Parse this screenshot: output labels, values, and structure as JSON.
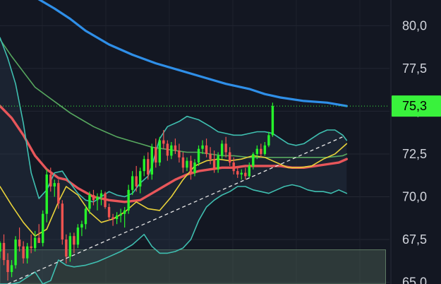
{
  "chart_data": {
    "type": "candlestick",
    "y_axis": {
      "ticks": [
        "65,0",
        "67,5",
        "70,0",
        "72,5",
        "75,0",
        "77,5",
        "80,0"
      ],
      "tick_values": [
        65.0,
        67.5,
        70.0,
        72.5,
        75.0,
        77.5,
        80.0
      ],
      "range": [
        64.9,
        81.5
      ],
      "position": "right"
    },
    "x_range": [
      0,
      100
    ],
    "last_price": {
      "label": "75,3",
      "value": 75.3
    },
    "support_zone": {
      "y_top": 66.9,
      "y_bottom": 64.9
    },
    "trendline": [
      [
        2,
        64.9
      ],
      [
        88,
        73.5
      ]
    ],
    "colors": {
      "background": "#131722",
      "up": "#26f52a",
      "down": "#f05350",
      "ma_long": "#2f8fe8",
      "ma_mid": "#57a85f",
      "ma_fast": "#e8565a",
      "ma_short": "#e8d23a",
      "band": "#3fbfb0",
      "price_badge": "#39f23c",
      "zone": "#4d6356"
    },
    "candles": [
      [
        0,
        66.8,
        67.4,
        66.4,
        67.3
      ],
      [
        1,
        67.3,
        67.8,
        66.0,
        66.3
      ],
      [
        2,
        66.3,
        66.7,
        65.1,
        65.6
      ],
      [
        3,
        65.6,
        66.3,
        65.3,
        66.0
      ],
      [
        4,
        66.0,
        67.7,
        65.8,
        67.5
      ],
      [
        5,
        67.5,
        68.2,
        66.8,
        67.1
      ],
      [
        6,
        67.1,
        67.4,
        66.1,
        66.4
      ],
      [
        7,
        66.4,
        67.3,
        66.1,
        67.1
      ],
      [
        8,
        67.1,
        67.8,
        66.7,
        67.0
      ],
      [
        9,
        67.0,
        68.0,
        66.8,
        67.6
      ],
      [
        10,
        67.6,
        68.4,
        67.3,
        67.3
      ],
      [
        11,
        67.3,
        69.2,
        67.1,
        69.0
      ],
      [
        12,
        69.0,
        71.6,
        68.5,
        71.3
      ],
      [
        13,
        71.3,
        71.7,
        70.3,
        70.6
      ],
      [
        14,
        70.6,
        71.0,
        70.0,
        70.8
      ],
      [
        15,
        70.8,
        71.0,
        69.3,
        69.6
      ],
      [
        16,
        69.6,
        69.8,
        67.2,
        67.5
      ],
      [
        17,
        67.5,
        67.8,
        66.1,
        66.5
      ],
      [
        18,
        66.5,
        67.9,
        66.2,
        67.7
      ],
      [
        19,
        67.7,
        67.9,
        66.7,
        67.2
      ],
      [
        20,
        67.2,
        68.4,
        67.0,
        68.2
      ],
      [
        21,
        68.2,
        68.6,
        67.7,
        68.4
      ],
      [
        22,
        68.4,
        69.5,
        68.1,
        69.3
      ],
      [
        23,
        69.3,
        70.3,
        69.0,
        70.1
      ],
      [
        24,
        70.1,
        70.4,
        69.5,
        69.8
      ],
      [
        25,
        69.8,
        70.2,
        69.2,
        70.0
      ],
      [
        26,
        70.0,
        70.4,
        69.5,
        70.2
      ],
      [
        27,
        70.2,
        70.3,
        69.3,
        69.4
      ],
      [
        28,
        69.4,
        69.6,
        68.6,
        68.8
      ],
      [
        29,
        68.8,
        69.0,
        68.3,
        68.7
      ],
      [
        30,
        68.7,
        69.1,
        68.4,
        68.9
      ],
      [
        31,
        68.9,
        69.3,
        68.5,
        69.0
      ],
      [
        32,
        69.0,
        69.4,
        68.2,
        69.2
      ],
      [
        33,
        69.2,
        70.7,
        69.0,
        70.4
      ],
      [
        34,
        70.4,
        71.5,
        70.1,
        71.2
      ],
      [
        35,
        71.2,
        71.8,
        70.3,
        70.6
      ],
      [
        36,
        70.6,
        71.7,
        70.2,
        71.5
      ],
      [
        37,
        71.5,
        72.4,
        71.2,
        72.2
      ],
      [
        38,
        72.2,
        72.6,
        71.0,
        71.3
      ],
      [
        39,
        71.3,
        73.1,
        71.0,
        72.9
      ],
      [
        40,
        72.9,
        73.4,
        71.7,
        72.0
      ],
      [
        41,
        72.0,
        73.5,
        71.8,
        73.3
      ],
      [
        42,
        73.3,
        73.9,
        72.8,
        73.1
      ],
      [
        43,
        73.1,
        73.3,
        72.1,
        72.4
      ],
      [
        44,
        72.4,
        73.2,
        72.2,
        73.0
      ],
      [
        45,
        73.0,
        73.4,
        72.5,
        72.7
      ],
      [
        46,
        72.7,
        73.1,
        72.0,
        72.3
      ],
      [
        47,
        72.3,
        72.6,
        71.4,
        71.7
      ],
      [
        48,
        71.7,
        72.3,
        71.5,
        72.1
      ],
      [
        49,
        72.1,
        72.4,
        71.0,
        71.4
      ],
      [
        50,
        71.4,
        72.2,
        71.2,
        72.0
      ],
      [
        51,
        72.0,
        73.0,
        71.8,
        72.8
      ],
      [
        52,
        72.8,
        73.3,
        72.5,
        73.0
      ],
      [
        53,
        73.0,
        73.4,
        72.3,
        72.5
      ],
      [
        54,
        72.5,
        72.9,
        71.9,
        72.2
      ],
      [
        55,
        72.2,
        72.7,
        71.4,
        71.6
      ],
      [
        56,
        71.6,
        72.6,
        71.4,
        72.4
      ],
      [
        57,
        72.4,
        73.3,
        72.2,
        73.1
      ],
      [
        58,
        73.1,
        73.5,
        72.3,
        72.6
      ],
      [
        59,
        72.6,
        72.9,
        71.8,
        72.0
      ],
      [
        60,
        72.0,
        72.3,
        71.3,
        71.5
      ],
      [
        61,
        71.5,
        71.8,
        71.1,
        71.3
      ],
      [
        62,
        71.3,
        71.6,
        71.0,
        71.4
      ],
      [
        63,
        71.4,
        71.7,
        71.0,
        71.2
      ],
      [
        64,
        71.2,
        72.0,
        71.1,
        71.8
      ],
      [
        65,
        71.8,
        72.6,
        71.6,
        72.5
      ],
      [
        66,
        72.5,
        73.0,
        72.2,
        72.8
      ],
      [
        67,
        72.8,
        73.1,
        72.3,
        72.5
      ],
      [
        68,
        72.5,
        73.2,
        72.4,
        73.0
      ],
      [
        69,
        73.0,
        73.8,
        72.9,
        73.6
      ],
      [
        70,
        73.6,
        75.5,
        73.5,
        75.3
      ]
    ],
    "series": [
      {
        "key": "ma_long",
        "points": [
          [
            8,
            81.8
          ],
          [
            14,
            81.0
          ],
          [
            18,
            80.4
          ],
          [
            22,
            79.7
          ],
          [
            28,
            78.9
          ],
          [
            34,
            78.3
          ],
          [
            40,
            77.8
          ],
          [
            46,
            77.4
          ],
          [
            52,
            77.0
          ],
          [
            58,
            76.6
          ],
          [
            64,
            76.3
          ],
          [
            68,
            76.0
          ],
          [
            72,
            75.8
          ],
          [
            78,
            75.6
          ],
          [
            84,
            75.5
          ],
          [
            89,
            75.3
          ]
        ]
      },
      {
        "key": "ma_mid",
        "points": [
          [
            0,
            79.2
          ],
          [
            3,
            78.2
          ],
          [
            6,
            77.3
          ],
          [
            9,
            76.4
          ],
          [
            12,
            75.9
          ],
          [
            15,
            75.4
          ],
          [
            18,
            74.9
          ],
          [
            21,
            74.5
          ],
          [
            24,
            74.1
          ],
          [
            27,
            73.8
          ],
          [
            30,
            73.5
          ],
          [
            33,
            73.3
          ],
          [
            36,
            73.1
          ],
          [
            39,
            72.9
          ],
          [
            42,
            72.8
          ],
          [
            45,
            72.7
          ],
          [
            48,
            72.6
          ],
          [
            51,
            72.6
          ],
          [
            54,
            72.5
          ],
          [
            57,
            72.4
          ],
          [
            60,
            72.4
          ],
          [
            64,
            72.3
          ],
          [
            68,
            72.3
          ],
          [
            72,
            72.3
          ],
          [
            76,
            72.3
          ],
          [
            80,
            72.3
          ],
          [
            84,
            72.3
          ],
          [
            88,
            72.4
          ],
          [
            89,
            72.5
          ]
        ]
      },
      {
        "key": "ma_fast",
        "points": [
          [
            0,
            75.3
          ],
          [
            3,
            74.6
          ],
          [
            6,
            73.6
          ],
          [
            9,
            72.4
          ],
          [
            12,
            71.6
          ],
          [
            15,
            71.1
          ],
          [
            17,
            71.0
          ],
          [
            20,
            70.5
          ],
          [
            24,
            70.0
          ],
          [
            28,
            69.8
          ],
          [
            32,
            69.7
          ],
          [
            36,
            69.8
          ],
          [
            39,
            70.2
          ],
          [
            42,
            70.6
          ],
          [
            45,
            71.0
          ],
          [
            48,
            71.3
          ],
          [
            51,
            71.5
          ],
          [
            54,
            71.6
          ],
          [
            57,
            71.7
          ],
          [
            60,
            71.7
          ],
          [
            63,
            71.8
          ],
          [
            66,
            71.8
          ],
          [
            69,
            71.8
          ],
          [
            72,
            71.8
          ],
          [
            75,
            71.7
          ],
          [
            78,
            71.7
          ],
          [
            81,
            71.8
          ],
          [
            84,
            71.9
          ],
          [
            87,
            72.0
          ],
          [
            89,
            72.2
          ]
        ]
      },
      {
        "key": "ma_short",
        "points": [
          [
            0,
            70.6
          ],
          [
            3,
            69.5
          ],
          [
            6,
            68.5
          ],
          [
            9,
            67.7
          ],
          [
            12,
            68.1
          ],
          [
            15,
            69.7
          ],
          [
            17,
            70.6
          ],
          [
            20,
            70.1
          ],
          [
            23,
            69.1
          ],
          [
            26,
            68.5
          ],
          [
            29,
            68.7
          ],
          [
            32,
            69.1
          ],
          [
            35,
            69.7
          ],
          [
            38,
            69.3
          ],
          [
            41,
            69.2
          ],
          [
            44,
            70.0
          ],
          [
            47,
            71.0
          ],
          [
            50,
            71.8
          ],
          [
            53,
            72.1
          ],
          [
            56,
            72.2
          ],
          [
            59,
            72.1
          ],
          [
            62,
            72.2
          ],
          [
            65,
            72.4
          ],
          [
            68,
            72.3
          ],
          [
            71,
            72.0
          ],
          [
            74,
            71.7
          ],
          [
            77,
            71.7
          ],
          [
            80,
            71.8
          ],
          [
            83,
            72.2
          ],
          [
            86,
            72.5
          ],
          [
            89,
            73.1
          ]
        ]
      },
      {
        "key": "band",
        "points": [
          [
            0,
            79.3
          ],
          [
            2,
            78.1
          ],
          [
            4,
            76.6
          ],
          [
            6,
            74.3
          ],
          [
            8,
            71.4
          ],
          [
            10,
            69.9
          ],
          [
            12,
            70.4
          ],
          [
            14,
            71.4
          ],
          [
            16,
            71.5
          ],
          [
            18,
            70.8
          ],
          [
            20,
            70.2
          ],
          [
            22,
            69.8
          ],
          [
            24,
            69.7
          ],
          [
            26,
            70.0
          ],
          [
            28,
            70.3
          ],
          [
            30,
            70.1
          ],
          [
            32,
            70.0
          ],
          [
            34,
            70.2
          ],
          [
            36,
            70.8
          ],
          [
            38,
            71.2
          ],
          [
            39,
            71.8
          ],
          [
            41,
            73.4
          ],
          [
            43,
            74.1
          ],
          [
            46,
            74.4
          ],
          [
            48,
            74.7
          ],
          [
            51,
            74.5
          ],
          [
            54,
            74.1
          ],
          [
            56,
            73.8
          ],
          [
            58,
            73.7
          ],
          [
            60,
            73.6
          ],
          [
            62,
            73.6
          ],
          [
            64,
            73.7
          ],
          [
            66,
            73.8
          ],
          [
            68,
            73.8
          ],
          [
            70,
            73.7
          ],
          [
            72,
            73.4
          ],
          [
            74,
            73.1
          ],
          [
            76,
            73.0
          ],
          [
            78,
            73.1
          ],
          [
            80,
            73.4
          ],
          [
            82,
            73.7
          ],
          [
            84,
            73.9
          ],
          [
            86,
            73.9
          ],
          [
            88,
            73.6
          ],
          [
            89,
            73.3
          ]
        ]
      },
      {
        "key": "band",
        "points": [
          [
            0,
            64.9
          ],
          [
            3,
            64.9
          ],
          [
            5,
            65.0
          ],
          [
            7,
            65.3
          ],
          [
            9,
            65.6
          ],
          [
            11,
            64.9
          ],
          [
            13,
            65.1
          ],
          [
            15,
            66.3
          ],
          [
            17,
            66.0
          ],
          [
            19,
            65.9
          ],
          [
            22,
            66.0
          ],
          [
            25,
            66.2
          ],
          [
            28,
            66.5
          ],
          [
            31,
            66.8
          ],
          [
            34,
            67.2
          ],
          [
            37,
            67.8
          ],
          [
            39,
            67.1
          ],
          [
            41,
            66.7
          ],
          [
            43,
            66.7
          ],
          [
            45,
            66.8
          ],
          [
            47,
            67.0
          ],
          [
            49,
            67.5
          ],
          [
            51,
            68.6
          ],
          [
            53,
            69.4
          ],
          [
            55,
            69.8
          ],
          [
            57,
            70.1
          ],
          [
            59,
            70.3
          ],
          [
            61,
            70.6
          ],
          [
            63,
            70.6
          ],
          [
            65,
            70.4
          ],
          [
            67,
            70.3
          ],
          [
            69,
            70.2
          ],
          [
            71,
            70.4
          ],
          [
            73,
            70.6
          ],
          [
            75,
            70.7
          ],
          [
            77,
            70.6
          ],
          [
            79,
            70.4
          ],
          [
            81,
            70.3
          ],
          [
            83,
            70.3
          ],
          [
            85,
            70.2
          ],
          [
            87,
            70.4
          ],
          [
            89,
            70.2
          ]
        ]
      }
    ]
  }
}
